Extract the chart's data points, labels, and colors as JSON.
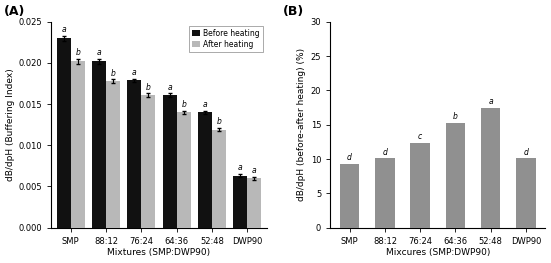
{
  "panel_A": {
    "categories": [
      "SMP",
      "88:12",
      "76:24",
      "64:36",
      "52:48",
      "DWP90"
    ],
    "before_heating": [
      0.023,
      0.0202,
      0.0179,
      0.0161,
      0.014,
      0.0063
    ],
    "after_heating": [
      0.0202,
      0.0178,
      0.0161,
      0.014,
      0.0119,
      0.006
    ],
    "before_errors": [
      0.0003,
      0.0003,
      0.0002,
      0.0002,
      0.0002,
      0.0002
    ],
    "after_errors": [
      0.0003,
      0.0002,
      0.0002,
      0.0002,
      0.0002,
      0.0002
    ],
    "before_labels": [
      "a",
      "a",
      "a",
      "a",
      "a",
      "a"
    ],
    "after_labels": [
      "b",
      "b",
      "b",
      "b",
      "b",
      "a"
    ],
    "ylabel": "dB/dpH (Buffering Index)",
    "xlabel": "Mixtures (SMP:DWP90)",
    "ylim": [
      0,
      0.025
    ],
    "yticks": [
      0.0,
      0.005,
      0.01,
      0.015,
      0.02,
      0.025
    ],
    "panel_label": "(A)",
    "bar_color_before": "#111111",
    "bar_color_after": "#b8b8b8",
    "legend_before": "Before heating",
    "legend_after": "After heating"
  },
  "panel_B": {
    "categories": [
      "SMP",
      "88:12",
      "76:24",
      "64:36",
      "52:48",
      "DWP90"
    ],
    "values": [
      9.3,
      10.1,
      12.4,
      15.3,
      17.5,
      10.1
    ],
    "labels": [
      "d",
      "d",
      "c",
      "b",
      "a",
      "d"
    ],
    "ylabel": "dB/dpH (before-after heating) (%)",
    "xlabel": "Mixcures (SMP:DWP90)",
    "ylim": [
      0,
      30
    ],
    "yticks": [
      0,
      5,
      10,
      15,
      20,
      25,
      30
    ],
    "panel_label": "(B)",
    "bar_color": "#909090"
  },
  "bg_color": "#ffffff"
}
